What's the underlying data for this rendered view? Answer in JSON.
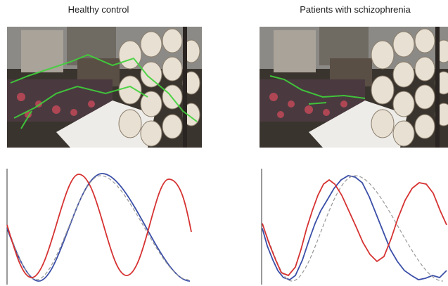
{
  "panels": [
    {
      "title": "Healthy control"
    },
    {
      "title": "Patients with schizophrenia"
    }
  ]
}
